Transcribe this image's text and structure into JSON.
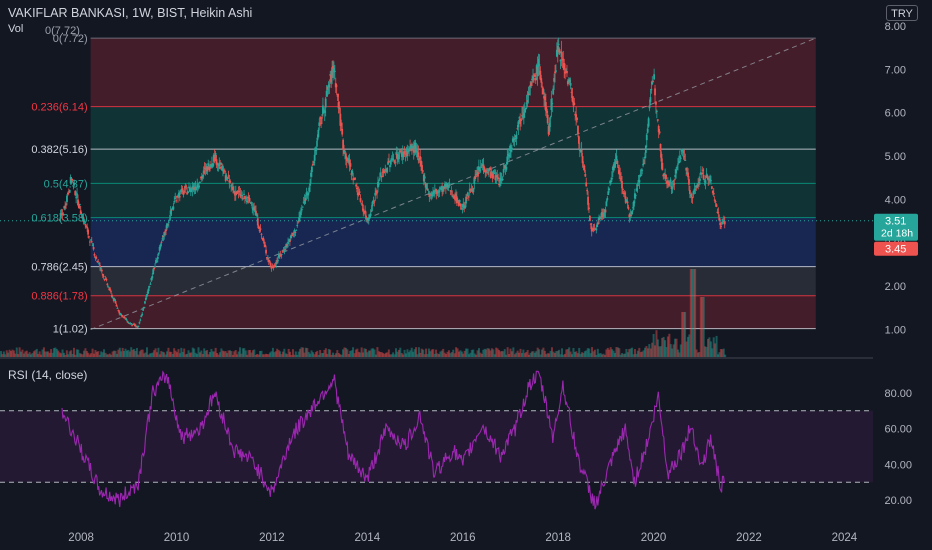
{
  "header": {
    "title": "VAKIFLAR BANKASI, 1W, BIST, Heikin Ashi",
    "volume_label": "Vol",
    "volume_value": "0(7.72)",
    "rsi_label": "RSI (14, close)",
    "currency": "TRY"
  },
  "colors": {
    "background": "#131722",
    "up": "#26a69a",
    "down": "#ef5350",
    "rsi_line": "#9c27b0",
    "fib_red": "#f23645",
    "fib_teal": "#089981",
    "fib_blue": "#2962ff",
    "fib_gray": "#787b86"
  },
  "price_badges": {
    "last_price": "3.51",
    "countdown": "2d 18h",
    "prev_close": "3.45"
  },
  "chart_data": [
    {
      "type": "candlestick",
      "title": "VAKIFLAR BANKASI, 1W, BIST, Heikin Ashi",
      "ylim": [
        0.4,
        8.1
      ],
      "xlim": [
        2006.3,
        2024.6
      ],
      "y_ticks": [
        "1.00",
        "2.00",
        "3.00",
        "4.00",
        "5.00",
        "6.00",
        "7.00",
        "8.00"
      ],
      "x_ticks": [
        "2008",
        "2010",
        "2012",
        "2014",
        "2016",
        "2018",
        "2020",
        "2022",
        "2024"
      ],
      "price_path": [
        [
          2007.6,
          3.6
        ],
        [
          2007.8,
          4.5
        ],
        [
          2008.0,
          3.7
        ],
        [
          2008.3,
          2.7
        ],
        [
          2008.6,
          1.9
        ],
        [
          2008.8,
          1.4
        ],
        [
          2009.0,
          1.15
        ],
        [
          2009.2,
          1.05
        ],
        [
          2009.5,
          2.3
        ],
        [
          2009.8,
          3.4
        ],
        [
          2010.0,
          4.1
        ],
        [
          2010.4,
          4.3
        ],
        [
          2010.8,
          5.0
        ],
        [
          2011.2,
          4.2
        ],
        [
          2011.6,
          3.9
        ],
        [
          2011.9,
          2.7
        ],
        [
          2012.0,
          2.4
        ],
        [
          2012.5,
          3.3
        ],
        [
          2012.8,
          4.4
        ],
        [
          2013.0,
          5.7
        ],
        [
          2013.3,
          7.1
        ],
        [
          2013.5,
          5.2
        ],
        [
          2013.8,
          4.2
        ],
        [
          2014.0,
          3.5
        ],
        [
          2014.3,
          4.6
        ],
        [
          2014.6,
          5.0
        ],
        [
          2015.0,
          5.2
        ],
        [
          2015.3,
          4.1
        ],
        [
          2015.7,
          4.3
        ],
        [
          2016.0,
          3.8
        ],
        [
          2016.4,
          4.8
        ],
        [
          2016.8,
          4.4
        ],
        [
          2017.0,
          5.2
        ],
        [
          2017.3,
          6.2
        ],
        [
          2017.6,
          7.1
        ],
        [
          2017.8,
          5.6
        ],
        [
          2018.0,
          7.6
        ],
        [
          2018.3,
          6.4
        ],
        [
          2018.6,
          4.2
        ],
        [
          2018.7,
          3.2
        ],
        [
          2019.0,
          3.8
        ],
        [
          2019.2,
          5.0
        ],
        [
          2019.5,
          3.6
        ],
        [
          2019.8,
          4.9
        ],
        [
          2020.0,
          6.9
        ],
        [
          2020.2,
          4.6
        ],
        [
          2020.4,
          4.3
        ],
        [
          2020.6,
          5.2
        ],
        [
          2020.8,
          4.0
        ],
        [
          2021.0,
          4.6
        ],
        [
          2021.2,
          4.4
        ],
        [
          2021.4,
          3.45
        ],
        [
          2021.5,
          3.51
        ]
      ],
      "trend_line": {
        "from": [
          2008.2,
          1.0
        ],
        "to": [
          2023.4,
          7.72
        ]
      },
      "fib_levels": [
        {
          "ratio": "0",
          "label": "0(7.72)",
          "value": 7.72
        },
        {
          "ratio": "0.236",
          "label": "0.236(6.14)",
          "value": 6.14
        },
        {
          "ratio": "0.382",
          "label": "0.382(5.16)",
          "value": 5.16
        },
        {
          "ratio": "0.5",
          "label": "0.5(4.37)",
          "value": 4.37
        },
        {
          "ratio": "0.618",
          "label": "0.618(3.58)",
          "value": 3.58
        },
        {
          "ratio": "0.786",
          "label": "0.786(2.45)",
          "value": 2.45
        },
        {
          "ratio": "0.886",
          "label": "0.886(1.78)",
          "value": 1.78
        },
        {
          "ratio": "1",
          "label": "1(1.02)",
          "value": 1.02
        }
      ]
    },
    {
      "type": "line",
      "title": "RSI (14, close)",
      "ylim": [
        10,
        97
      ],
      "y_ticks": [
        "20.00",
        "40.00",
        "60.00",
        "80.00"
      ],
      "bands": [
        70,
        30
      ],
      "path": [
        [
          2007.6,
          70
        ],
        [
          2008.0,
          48
        ],
        [
          2008.4,
          25
        ],
        [
          2008.8,
          20
        ],
        [
          2009.2,
          30
        ],
        [
          2009.5,
          80
        ],
        [
          2009.8,
          90
        ],
        [
          2010.1,
          55
        ],
        [
          2010.5,
          60
        ],
        [
          2010.8,
          80
        ],
        [
          2011.2,
          48
        ],
        [
          2011.6,
          42
        ],
        [
          2012.0,
          24
        ],
        [
          2012.4,
          55
        ],
        [
          2012.8,
          70
        ],
        [
          2013.3,
          88
        ],
        [
          2013.6,
          45
        ],
        [
          2014.0,
          32
        ],
        [
          2014.4,
          60
        ],
        [
          2014.8,
          50
        ],
        [
          2015.1,
          68
        ],
        [
          2015.4,
          35
        ],
        [
          2015.8,
          48
        ],
        [
          2016.0,
          40
        ],
        [
          2016.4,
          62
        ],
        [
          2016.8,
          45
        ],
        [
          2017.1,
          60
        ],
        [
          2017.4,
          85
        ],
        [
          2017.6,
          90
        ],
        [
          2017.9,
          55
        ],
        [
          2018.1,
          85
        ],
        [
          2018.4,
          45
        ],
        [
          2018.7,
          22
        ],
        [
          2018.8,
          18
        ],
        [
          2019.1,
          40
        ],
        [
          2019.4,
          60
        ],
        [
          2019.6,
          30
        ],
        [
          2019.9,
          55
        ],
        [
          2020.1,
          78
        ],
        [
          2020.3,
          35
        ],
        [
          2020.6,
          48
        ],
        [
          2020.8,
          62
        ],
        [
          2021.0,
          38
        ],
        [
          2021.2,
          55
        ],
        [
          2021.4,
          28
        ],
        [
          2021.5,
          30
        ]
      ]
    }
  ]
}
